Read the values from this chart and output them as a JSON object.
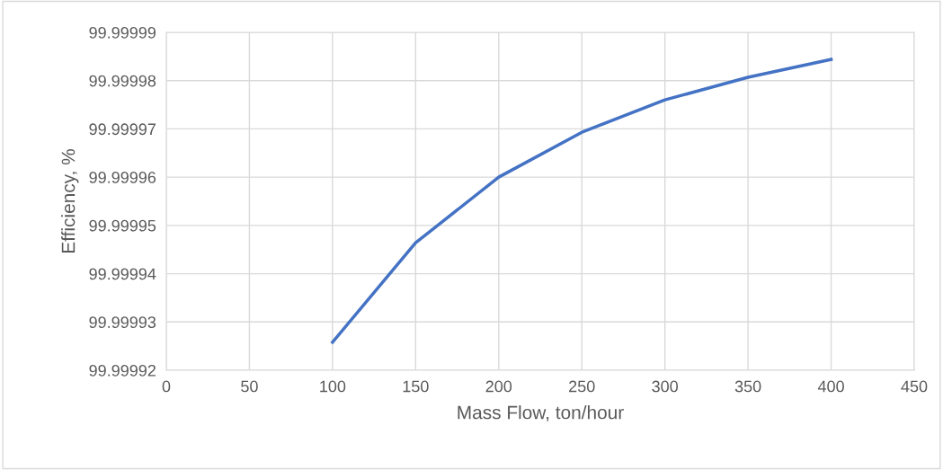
{
  "chart_data": {
    "type": "line",
    "xlabel": "Mass Flow, ton/hour",
    "ylabel": "Efficiency, %",
    "x": [
      100,
      150,
      200,
      250,
      300,
      350,
      400
    ],
    "series": [
      {
        "color": "#4472c4",
        "values": [
          99.9999258,
          99.9999464,
          99.99996,
          99.9999693,
          99.999976,
          99.9999807,
          99.9999844
        ]
      }
    ],
    "xlim": [
      0,
      450
    ],
    "xticks": [
      0,
      50,
      100,
      150,
      200,
      250,
      300,
      350,
      400,
      450
    ],
    "ylim": [
      99.99992,
      99.99999
    ],
    "yticks": [
      99.99992,
      99.99993,
      99.99994,
      99.99995,
      99.99996,
      99.99997,
      99.99998,
      99.99999
    ],
    "grid": true,
    "marker": "none",
    "line_style": "solid"
  }
}
